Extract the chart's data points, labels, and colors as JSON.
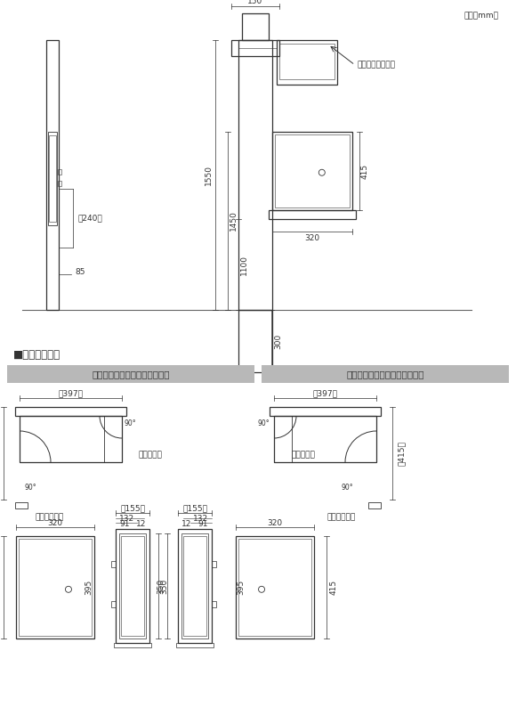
{
  "bg_color": "#ffffff",
  "line_color": "#333333",
  "unit_text": "単位（mm）",
  "stainless_sign": "ステンレスサイン",
  "post_size_title": "■ポストサイズ",
  "left_open_label": "左開き（右横入れ・前取出し）",
  "right_open_label": "右開き（左横入れ・前取出し）",
  "label_tosho": "投函口フタ",
  "label_toridashi": "取出し口フタ"
}
